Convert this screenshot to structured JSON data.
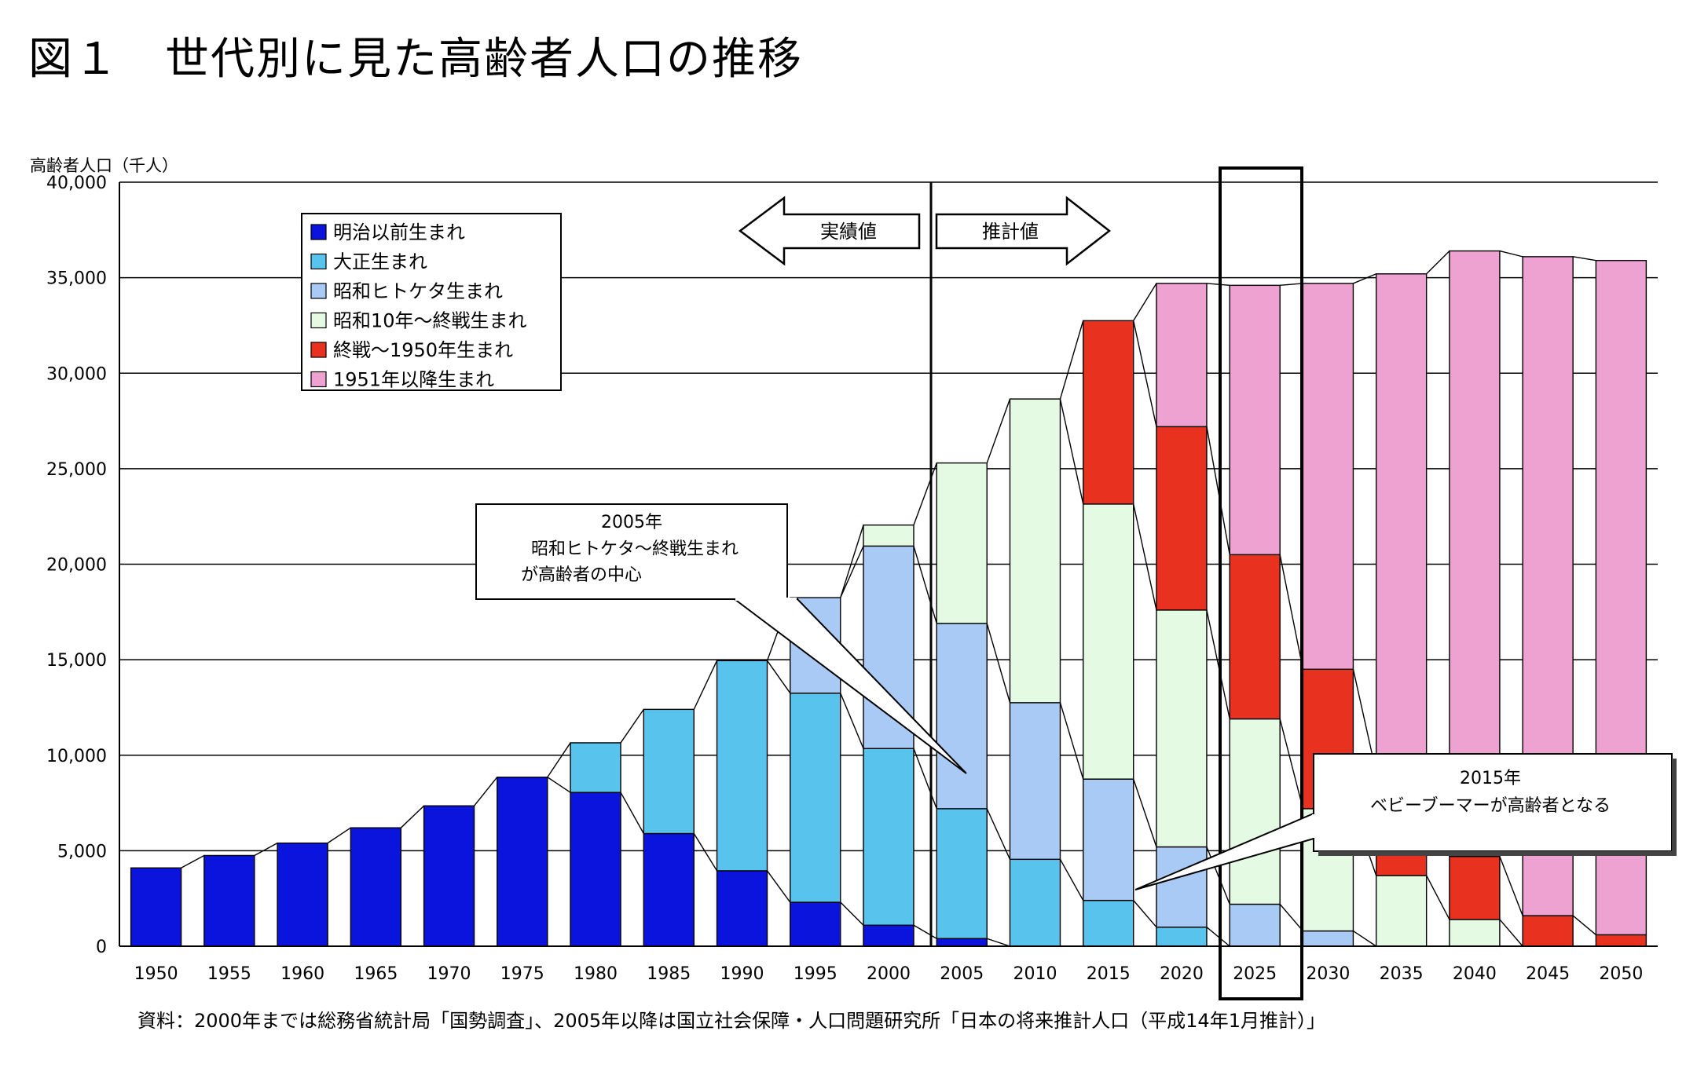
{
  "figure_title": "図１　世代別に見た高齢者人口の推移",
  "source_note": "資料：2000年までは総務省統計局「国勢調査」、2005年以降は国立社会保障・人口問題研究所「日本の将来推計人口（平成14年1月推計）」",
  "arrows": {
    "actual": "実績値",
    "projected": "推計値"
  },
  "callouts": [
    {
      "lines": [
        "2005年",
        "昭和ヒトケタ～終戦生まれ",
        "が高齢者の中心"
      ]
    },
    {
      "lines": [
        "2015年",
        "ベビーブーマーが高齢者となる"
      ]
    }
  ],
  "chart_data": {
    "type": "bar",
    "stacked": true,
    "title": "",
    "ylabel": "高齢者人口（千人）",
    "xlabel": "",
    "ylim": [
      0,
      40000
    ],
    "yticks": [
      0,
      5000,
      10000,
      15000,
      20000,
      25000,
      30000,
      35000,
      40000
    ],
    "ytick_labels": [
      "0",
      "5,000",
      "10,000",
      "15,000",
      "20,000",
      "25,000",
      "30,000",
      "35,000",
      "40,000"
    ],
    "grid": true,
    "legend_position": "top-left",
    "highlighted_category": "2025",
    "categories": [
      "1950",
      "1955",
      "1960",
      "1965",
      "1970",
      "1975",
      "1980",
      "1985",
      "1990",
      "1995",
      "2000",
      "2005",
      "2010",
      "2015",
      "2020",
      "2025",
      "2030",
      "2035",
      "2040",
      "2045",
      "2050"
    ],
    "series": [
      {
        "name": "明治以前生まれ",
        "color": "#0a14dc",
        "values": [
          4100,
          4750,
          5400,
          6200,
          7350,
          8850,
          8050,
          5900,
          3950,
          2300,
          1100,
          400,
          0,
          0,
          0,
          0,
          0,
          0,
          0,
          0,
          0
        ]
      },
      {
        "name": "大正生まれ",
        "color": "#58c4ee",
        "values": [
          0,
          0,
          0,
          0,
          0,
          0,
          2600,
          6500,
          11000,
          10950,
          9250,
          6800,
          4550,
          2400,
          1000,
          0,
          0,
          0,
          0,
          0,
          0
        ]
      },
      {
        "name": "昭和ヒトケタ生まれ",
        "color": "#a8caf4",
        "values": [
          0,
          0,
          0,
          0,
          0,
          0,
          0,
          0,
          0,
          5000,
          10600,
          9700,
          8200,
          6350,
          4200,
          2200,
          800,
          0,
          0,
          0,
          0
        ]
      },
      {
        "name": "昭和10年～終戦生まれ",
        "color": "#e4fae2",
        "values": [
          0,
          0,
          0,
          0,
          0,
          0,
          0,
          0,
          0,
          0,
          1100,
          8400,
          15900,
          14400,
          12400,
          9700,
          6400,
          3700,
          1400,
          0,
          0
        ]
      },
      {
        "name": "終戦～1950年生まれ",
        "color": "#e8311f",
        "values": [
          0,
          0,
          0,
          0,
          0,
          0,
          0,
          0,
          0,
          0,
          0,
          0,
          0,
          9600,
          9600,
          8600,
          7300,
          5400,
          3300,
          1600,
          600
        ]
      },
      {
        "name": "1951年以降生まれ",
        "color": "#eea2d2",
        "values": [
          0,
          0,
          0,
          0,
          0,
          0,
          0,
          0,
          0,
          0,
          0,
          0,
          0,
          0,
          7500,
          14100,
          20200,
          26100,
          31700,
          34500,
          35300
        ]
      }
    ]
  }
}
